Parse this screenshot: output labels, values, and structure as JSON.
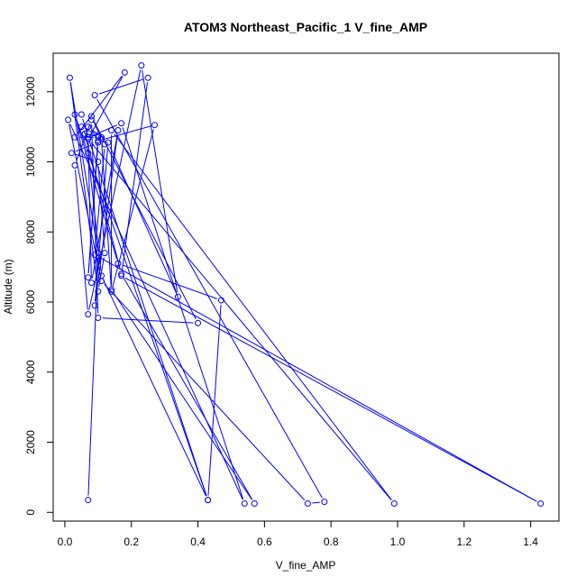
{
  "chart_data": {
    "type": "line",
    "title": "ATOM3 Northeast_Pacific_1 V_fine_AMP",
    "xlabel": "V_fine_AMP",
    "ylabel": "Altitude (m)",
    "xlim": [
      -0.035,
      1.485
    ],
    "ylim": [
      -250,
      13100
    ],
    "xticks": [
      0.0,
      0.2,
      0.4,
      0.6,
      0.8,
      1.0,
      1.2,
      1.4
    ],
    "xtick_labels": [
      "0.0",
      "0.2",
      "0.4",
      "0.6",
      "0.8",
      "1.0",
      "1.2",
      "1.4"
    ],
    "yticks": [
      0,
      2000,
      4000,
      6000,
      8000,
      10000,
      12000
    ],
    "ytick_labels": [
      "0",
      "2000",
      "4000",
      "6000",
      "8000",
      "10000",
      "12000"
    ],
    "grid": false,
    "marker": "open-circle",
    "series": [
      {
        "color": "#0000ff",
        "x": [
          0.07,
          0.1,
          0.015,
          0.1,
          0.12,
          0.1,
          0.02,
          0.1,
          0.07,
          0.1,
          0.03,
          0.18,
          0.07,
          0.05,
          0.1,
          0.07,
          0.11,
          0.06,
          0.17,
          0.57,
          0.14,
          0.14,
          0.99,
          0.07,
          0.07,
          0.11,
          0.43,
          0.03,
          0.16,
          0.47,
          0.43,
          0.07,
          0.17,
          0.54,
          0.01,
          0.11,
          0.73,
          0.78,
          0.09,
          0.25,
          0.17,
          1.43,
          0.09,
          0.12,
          0.1,
          0.27,
          0.14,
          0.11,
          0.08,
          0.4,
          0.1,
          0.08,
          0.03,
          0.07,
          0.23,
          0.34,
          0.13,
          0.09,
          0.16,
          0.08,
          0.07,
          0.05
        ],
        "y": [
          350,
          7400,
          12400,
          6300,
          7400,
          10000,
          10250,
          10550,
          6700,
          10700,
          10700,
          12550,
          10650,
          11000,
          10750,
          11000,
          10700,
          10800,
          6800,
          250,
          6350,
          10900,
          250,
          10650,
          10250,
          6750,
          350,
          11350,
          7100,
          6050,
          350,
          10700,
          11100,
          250,
          11200,
          6600,
          250,
          300,
          11900,
          12400,
          6750,
          250,
          7350,
          10500,
          10600,
          11050,
          6300,
          10650,
          11300,
          5400,
          5550,
          11200,
          9900,
          5650,
          12750,
          6150,
          10550,
          5900,
          10900,
          6550,
          10700,
          11350
        ]
      }
    ]
  }
}
